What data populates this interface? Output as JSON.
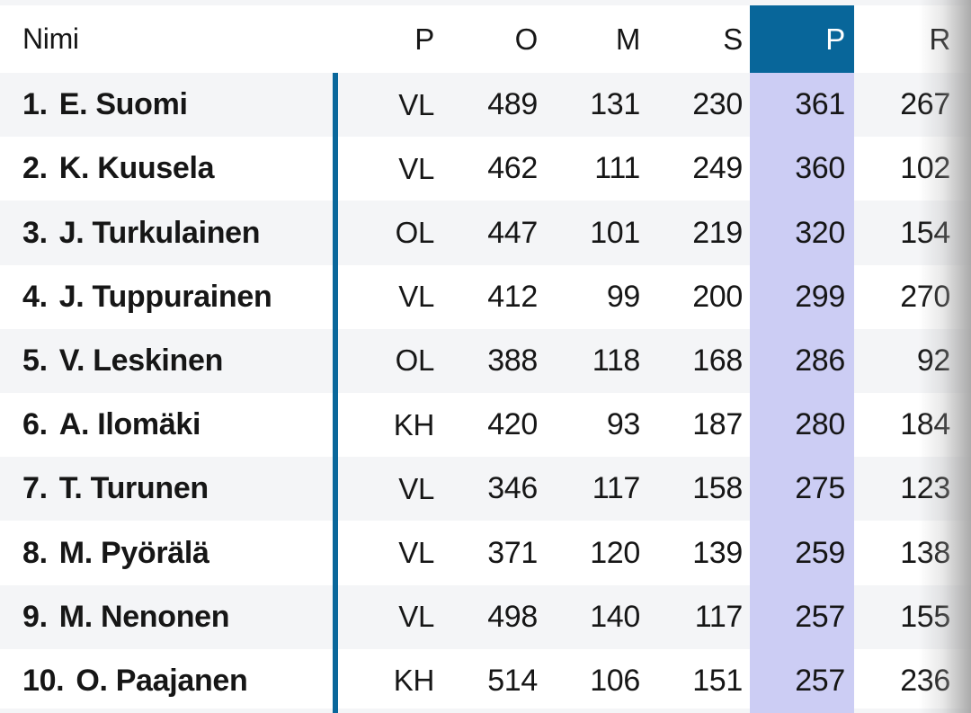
{
  "theme": {
    "header_highlight_blue": "#08669a",
    "highlight_column_bg": "#cccdf4",
    "divider_line_blue": "#09679b",
    "row_alt_bg": "#f4f5f7",
    "text_color": "#161616",
    "highlight_header_text": "#ffffff",
    "right_fade_gray": "#a6a6a6"
  },
  "table": {
    "columns": [
      {
        "key": "name",
        "label": "Nimi",
        "highlighted": false
      },
      {
        "key": "pos",
        "label": "P",
        "highlighted": false
      },
      {
        "key": "o",
        "label": "O",
        "highlighted": false
      },
      {
        "key": "m",
        "label": "M",
        "highlighted": false
      },
      {
        "key": "s",
        "label": "S",
        "highlighted": false
      },
      {
        "key": "p",
        "label": "P",
        "highlighted": true
      },
      {
        "key": "r",
        "label": "R",
        "highlighted": false
      }
    ],
    "rows": [
      {
        "rank": "1.",
        "name": "E. Suomi",
        "pos": "VL",
        "o": 489,
        "m": 131,
        "s": 230,
        "p": 361,
        "r": 267
      },
      {
        "rank": "2.",
        "name": "K. Kuusela",
        "pos": "VL",
        "o": 462,
        "m": 111,
        "s": 249,
        "p": 360,
        "r": 102
      },
      {
        "rank": "3.",
        "name": "J. Turkulainen",
        "pos": "OL",
        "o": 447,
        "m": 101,
        "s": 219,
        "p": 320,
        "r": 154
      },
      {
        "rank": "4.",
        "name": "J. Tuppurainen",
        "pos": "VL",
        "o": 412,
        "m": 99,
        "s": 200,
        "p": 299,
        "r": 270
      },
      {
        "rank": "5.",
        "name": "V. Leskinen",
        "pos": "OL",
        "o": 388,
        "m": 118,
        "s": 168,
        "p": 286,
        "r": 92
      },
      {
        "rank": "6.",
        "name": "A. Ilomäki",
        "pos": "KH",
        "o": 420,
        "m": 93,
        "s": 187,
        "p": 280,
        "r": 184
      },
      {
        "rank": "7.",
        "name": "T. Turunen",
        "pos": "VL",
        "o": 346,
        "m": 117,
        "s": 158,
        "p": 275,
        "r": 123
      },
      {
        "rank": "8.",
        "name": "M. Pyörälä",
        "pos": "VL",
        "o": 371,
        "m": 120,
        "s": 139,
        "p": 259,
        "r": 138
      },
      {
        "rank": "9.",
        "name": "M. Nenonen",
        "pos": "VL",
        "o": 498,
        "m": 140,
        "s": 117,
        "p": 257,
        "r": 155
      },
      {
        "rank": "10.",
        "name": "O. Paajanen",
        "pos": "KH",
        "o": 514,
        "m": 106,
        "s": 151,
        "p": 257,
        "r": 236
      }
    ]
  }
}
